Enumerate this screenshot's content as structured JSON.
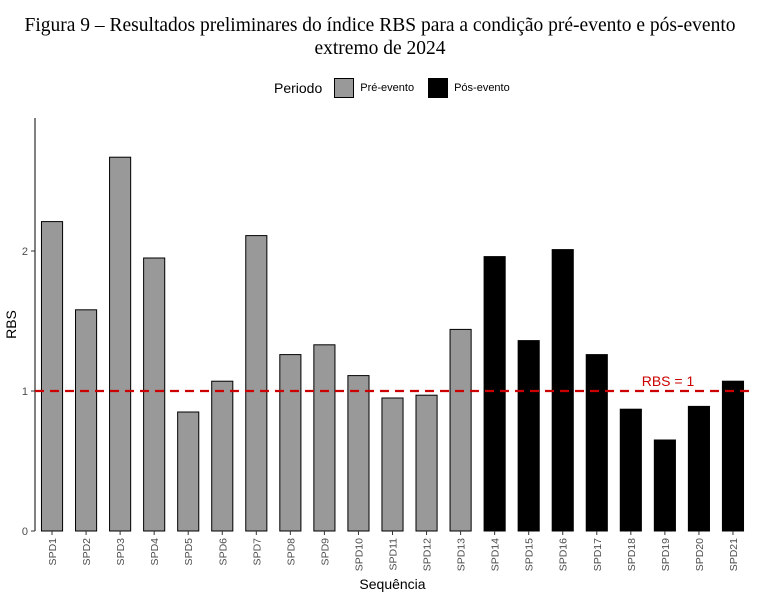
{
  "title": "Figura 9 – Resultados preliminares do índice RBS para a condição pré-evento e pós-evento extremo de 2024",
  "legend": {
    "title": "Periodo",
    "items": [
      {
        "label": "Pré-evento",
        "color": "#999999"
      },
      {
        "label": "Pós-evento",
        "color": "#000000"
      }
    ]
  },
  "chart_data": {
    "type": "bar",
    "xlabel": "Sequência",
    "ylabel": "RBS",
    "ylim": [
      0,
      2.95
    ],
    "yticks": [
      0,
      1,
      2
    ],
    "grid": false,
    "legend_position": "top",
    "categories": [
      "SPD1",
      "SPD2",
      "SPD3",
      "SPD4",
      "SPD5",
      "SPD6",
      "SPD7",
      "SPD8",
      "SPD9",
      "SPD10",
      "SPD11",
      "SPD12",
      "SPD13",
      "SPD14",
      "SPD15",
      "SPD16",
      "SPD17",
      "SPD18",
      "SPD19",
      "SPD20",
      "SPD21"
    ],
    "series": [
      {
        "name": "Pré-evento",
        "color": "#999999",
        "values": [
          2.21,
          1.58,
          2.67,
          1.95,
          0.85,
          1.07,
          2.11,
          1.26,
          1.33,
          1.11,
          0.95,
          0.97,
          1.44,
          null,
          null,
          null,
          null,
          null,
          null,
          null,
          null
        ]
      },
      {
        "name": "Pós-evento",
        "color": "#000000",
        "values": [
          null,
          null,
          null,
          null,
          null,
          null,
          null,
          null,
          null,
          null,
          null,
          null,
          null,
          1.96,
          1.36,
          2.01,
          1.26,
          0.87,
          0.65,
          0.89,
          1.07
        ]
      }
    ],
    "reference_line": {
      "y": 1,
      "label": "RBS = 1",
      "color": "#cc0000",
      "style": "dashed"
    }
  }
}
